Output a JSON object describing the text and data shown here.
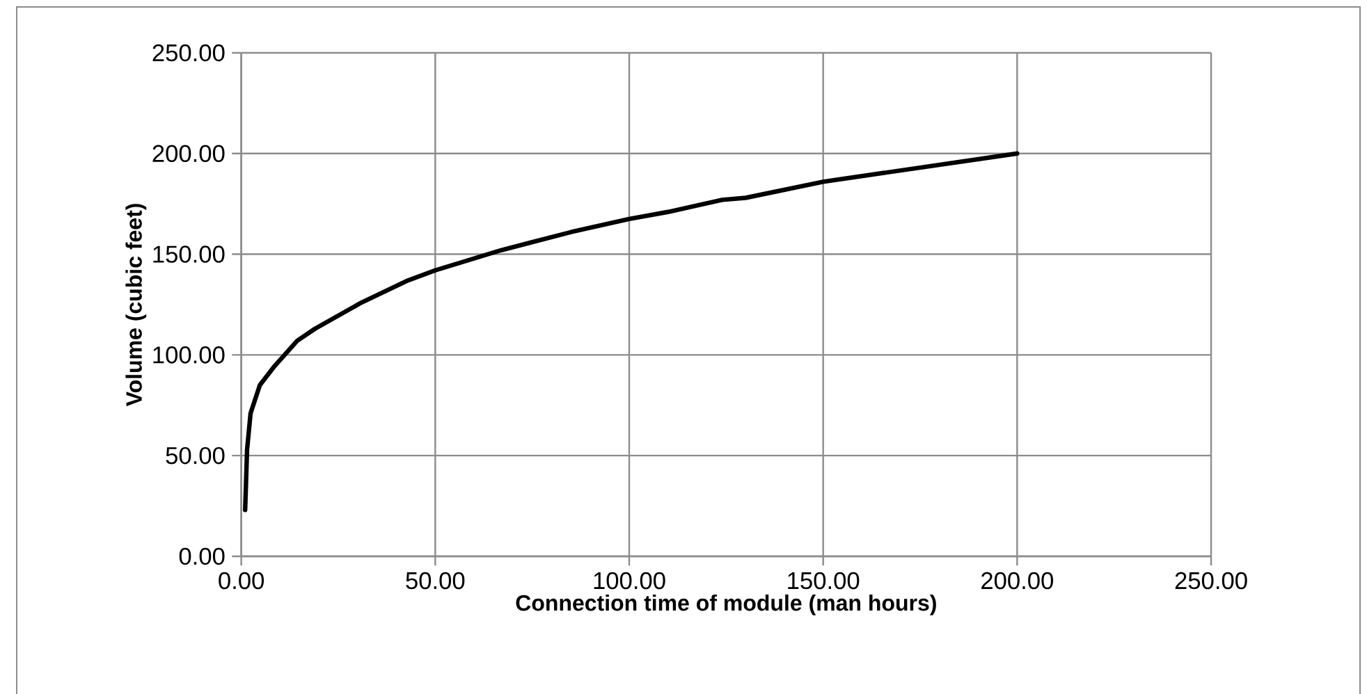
{
  "chart_data": {
    "type": "line",
    "xlabel": "Connection time of module  (man hours)",
    "ylabel": "Volume (cubic feet)",
    "series": [
      {
        "color": "#000000",
        "x": [
          1,
          1.5,
          2.4,
          4.8,
          8.4,
          14.4,
          19,
          31,
          43,
          50,
          67,
          85,
          100,
          110,
          124,
          130,
          150,
          200
        ],
        "values": [
          23,
          53,
          71,
          85,
          94,
          107,
          113,
          126,
          137,
          142,
          152,
          161,
          167.5,
          171,
          177,
          178,
          186,
          200
        ]
      }
    ],
    "xlim": [
      0,
      250
    ],
    "ylim": [
      0,
      250
    ],
    "xticks": [
      {
        "value": 0,
        "label": "0.00"
      },
      {
        "value": 50,
        "label": "50.00"
      },
      {
        "value": 100,
        "label": "100.00"
      },
      {
        "value": 150,
        "label": "150.00"
      },
      {
        "value": 200,
        "label": "200.00"
      },
      {
        "value": 250,
        "label": "250.00"
      }
    ],
    "yticks": [
      {
        "value": 0,
        "label": "0.00"
      },
      {
        "value": 50,
        "label": "50.00"
      },
      {
        "value": 100,
        "label": "100.00"
      },
      {
        "value": 150,
        "label": "150.00"
      },
      {
        "value": 200,
        "label": "200.00"
      },
      {
        "value": 250,
        "label": "250.00"
      }
    ],
    "grid": true,
    "marker": "none",
    "line_style": "solid"
  }
}
